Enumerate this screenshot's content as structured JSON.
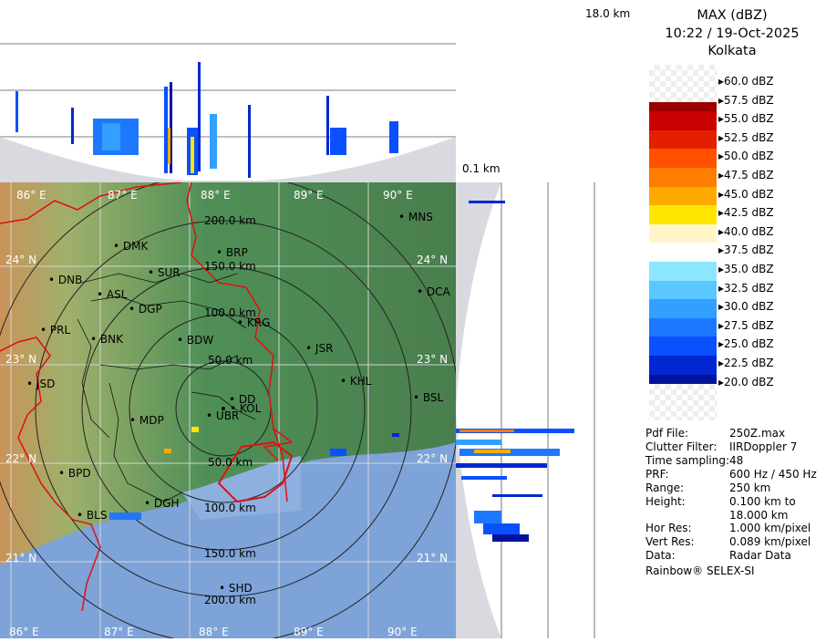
{
  "header": {
    "product": "MAX (dBZ)",
    "datetime": "10:22 / 19-Oct-2025",
    "station": "Kolkata"
  },
  "height_axis": {
    "top_label": "18.0 km",
    "bottom_label": "0.1 km"
  },
  "colorbar": {
    "levels": [
      {
        "label": "60.0 dBZ",
        "color": ""
      },
      {
        "label": "57.5 dBZ",
        "color": "#9c0000"
      },
      {
        "label": "55.0 dBZ",
        "color": "#c80000"
      },
      {
        "label": "52.5 dBZ",
        "color": "#e61e00"
      },
      {
        "label": "50.0 dBZ",
        "color": "#ff5000"
      },
      {
        "label": "47.5 dBZ",
        "color": "#ff7d00"
      },
      {
        "label": "45.0 dBZ",
        "color": "#ffaa00"
      },
      {
        "label": "42.5 dBZ",
        "color": "#ffe600"
      },
      {
        "label": "40.0 dBZ",
        "color": "#fff5c8"
      },
      {
        "label": "37.5 dBZ",
        "color": "#ffffff"
      },
      {
        "label": "35.0 dBZ",
        "color": "#8ce6ff"
      },
      {
        "label": "32.5 dBZ",
        "color": "#5ac8ff"
      },
      {
        "label": "30.0 dBZ",
        "color": "#32a0ff"
      },
      {
        "label": "27.5 dBZ",
        "color": "#1e78ff"
      },
      {
        "label": "25.0 dBZ",
        "color": "#0a50ff"
      },
      {
        "label": "22.5 dBZ",
        "color": "#0028d2"
      },
      {
        "label": "20.0 dBZ",
        "color": "#00149b"
      }
    ]
  },
  "info": [
    {
      "key": "Pdf File:",
      "value": "250Z.max"
    },
    {
      "key": "Clutter Filter:",
      "value": "IIRDoppler 7"
    },
    {
      "key": "Time sampling:",
      "value": "48"
    },
    {
      "key": "PRF:",
      "value": "600 Hz / 450 Hz"
    },
    {
      "key": "Range:",
      "value": "250 km"
    },
    {
      "key": "Height:",
      "value": "0.100 km to"
    },
    {
      "key": "",
      "value": "18.000 km"
    },
    {
      "key": "Hor Res:",
      "value": "1.000 km/pixel"
    },
    {
      "key": "Vert Res:",
      "value": "0.089 km/pixel"
    },
    {
      "key": "Data:",
      "value": "Radar Data"
    }
  ],
  "footer": "Rainbow® SELEX-SI",
  "map": {
    "lon_labels": [
      "86° E",
      "87° E",
      "88° E",
      "89° E",
      "90° E"
    ],
    "lat_labels": [
      "24° N",
      "23° N",
      "22° N",
      "21° N"
    ],
    "range_labels": [
      "50.0 km",
      "100.0 km",
      "150.0 km",
      "200.0 km"
    ],
    "places": [
      "MNS",
      "DMK",
      "BRP",
      "SUR",
      "DNB",
      "ASL",
      "DGP",
      "DCA",
      "PRL",
      "KRG",
      "BNK",
      "BDW",
      "JSR",
      "KHL",
      "JSD",
      "DD",
      "KOL",
      "UBR",
      "BSL",
      "MDP",
      "BPD",
      "DGH",
      "BLS",
      "SHD"
    ]
  }
}
